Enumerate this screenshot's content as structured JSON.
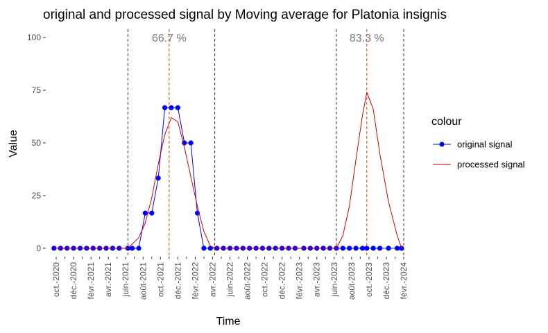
{
  "chart_data": {
    "type": "line",
    "title": "original and processed signal by Moving average for Platonia insignis",
    "xlabel": "Time",
    "ylabel": "Value",
    "ylim": [
      -4,
      104
    ],
    "yticks": [
      0,
      25,
      50,
      75,
      100
    ],
    "ytick_labels": [
      "0",
      "25",
      "50",
      "75",
      "100"
    ],
    "xlim_month_index": [
      -1.2,
      40.8
    ],
    "x_ticks": [
      {
        "label": "oct.-2020",
        "m": 0
      },
      {
        "label": "déc.-2020",
        "m": 2
      },
      {
        "label": "févr.-2021",
        "m": 4
      },
      {
        "label": "avr.-2021",
        "m": 6
      },
      {
        "label": "juin-2021",
        "m": 8
      },
      {
        "label": "août-2021",
        "m": 10
      },
      {
        "label": "oct.-2021",
        "m": 12
      },
      {
        "label": "déc.-2021",
        "m": 14
      },
      {
        "label": "févr.-2022",
        "m": 16
      },
      {
        "label": "avr.-2022",
        "m": 18
      },
      {
        "label": "juin-2022",
        "m": 20
      },
      {
        "label": "août-2022",
        "m": 22
      },
      {
        "label": "oct.-2022",
        "m": 24
      },
      {
        "label": "déc.-2022",
        "m": 26
      },
      {
        "label": "févr.-2023",
        "m": 28
      },
      {
        "label": "avr.-2023",
        "m": 30
      },
      {
        "label": "juin-2023",
        "m": 32
      },
      {
        "label": "août-2023",
        "m": 34
      },
      {
        "label": "oct.-2023",
        "m": 36
      },
      {
        "label": "déc.-2023",
        "m": 38
      },
      {
        "label": "févr.-2024",
        "m": 40
      }
    ],
    "series": [
      {
        "name": "original signal",
        "color": "#0000FF",
        "marker": "circle",
        "x": [
          -0.25,
          0.5,
          1.25,
          2,
          2.75,
          3.5,
          4.25,
          5,
          5.75,
          6.5,
          7.25,
          8.25,
          8.75,
          9.5,
          10.25,
          11,
          11.75,
          12.5,
          13.25,
          14,
          14.75,
          15.5,
          16.25,
          17,
          17.75,
          18.5,
          19.25,
          20,
          20.75,
          21.5,
          22.25,
          23,
          23.75,
          24.5,
          25.25,
          26,
          26.75,
          27.5,
          28.5,
          29.25,
          30,
          30.75,
          31.5,
          32.25,
          33,
          33.75,
          34.5,
          35.25,
          35.75,
          36.5,
          37.25,
          38.25,
          39.25,
          39.75
        ],
        "y": [
          0,
          0,
          0,
          0,
          0,
          0,
          0,
          0,
          0,
          0,
          0,
          0,
          0,
          0,
          16.7,
          16.7,
          33.3,
          66.7,
          66.7,
          66.7,
          50,
          50,
          16.7,
          0,
          0,
          0,
          0,
          0,
          0,
          0,
          0,
          0,
          0,
          0,
          0,
          0,
          0,
          0,
          0,
          0,
          0,
          0,
          0,
          0,
          0,
          0,
          0,
          0,
          0,
          0,
          0,
          0,
          0,
          0
        ]
      },
      {
        "name": "processed signal",
        "color": "#CC0000",
        "marker": "none",
        "x": [
          -0.25,
          8.25,
          9.5,
          10.25,
          11,
          11.75,
          12.5,
          13.25,
          14,
          14.75,
          15.5,
          16.25,
          17,
          17.75,
          18.5,
          32.25,
          33,
          33.75,
          34.5,
          35.25,
          35.75,
          36.5,
          37.25,
          38.25,
          39.25,
          39.75
        ],
        "y": [
          0,
          0,
          5,
          12,
          24,
          40,
          54,
          62,
          60,
          48,
          34,
          20,
          8,
          1,
          0,
          0,
          6,
          20,
          42,
          63,
          74,
          66,
          45,
          22,
          6,
          0
        ]
      }
    ],
    "vlines": [
      {
        "m": 8.25,
        "style": "dashed",
        "color": "#333333"
      },
      {
        "m": 13.0,
        "style": "dashed",
        "color": "#CC4400"
      },
      {
        "m": 18.25,
        "style": "dashed",
        "color": "#333333"
      },
      {
        "m": 32.25,
        "style": "dashed",
        "color": "#333333"
      },
      {
        "m": 35.75,
        "style": "dashed",
        "color": "#CC4400"
      },
      {
        "m": 40.0,
        "style": "dashed",
        "color": "#333333"
      }
    ],
    "annotations": [
      {
        "text": "66.7 %",
        "m": 13.0,
        "y": 100
      },
      {
        "text": "83.3 %",
        "m": 35.75,
        "y": 100
      }
    ],
    "legend": {
      "title": "colour",
      "position": "right",
      "entries": [
        {
          "label": "original signal",
          "color": "#0000FF",
          "marker": "circle"
        },
        {
          "label": "processed signal",
          "color": "#CC0000",
          "marker": "none"
        }
      ]
    }
  }
}
